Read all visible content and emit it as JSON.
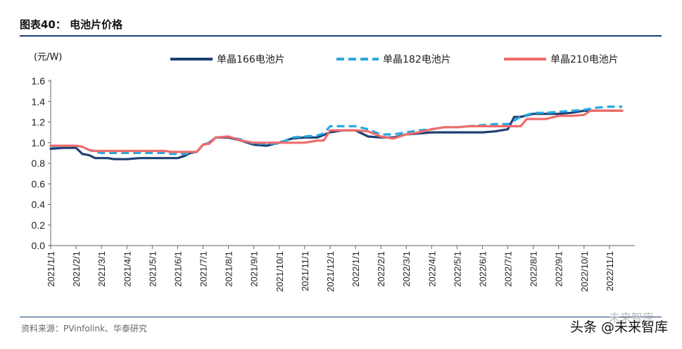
{
  "header": {
    "figure_title": "图表40： 电池片价格",
    "unit": "(元/W)"
  },
  "footer": {
    "source": "资料来源：PVinfolink、华泰研究",
    "watermark_faint": "未来智库",
    "watermark": "头条 @未来智库"
  },
  "chart_data": {
    "type": "line",
    "ylim": [
      0,
      1.6
    ],
    "yticks": [
      "0.0",
      "0.2",
      "0.4",
      "0.6",
      "0.8",
      "1.0",
      "1.2",
      "1.4",
      "1.6"
    ],
    "xlim": [
      0,
      23
    ],
    "xtick_labels": [
      "2021/1/1",
      "2021/2/1",
      "2021/3/1",
      "2021/4/1",
      "2021/5/1",
      "2021/6/1",
      "2021/7/1",
      "2021/8/1",
      "2021/9/1",
      "2021/10/1",
      "2021/11/1",
      "2021/12/1",
      "2022/1/1",
      "2022/2/1",
      "2022/3/1",
      "2022/4/1",
      "2022/5/1",
      "2022/6/1",
      "2022/7/1",
      "2022/8/1",
      "2022/9/1",
      "2022/10/1",
      "2022/11/1"
    ],
    "legend_position": "top",
    "series": [
      {
        "name": "单晶166电池片",
        "color": "#1c3f74",
        "dash": "solid",
        "x": [
          0,
          0.5,
          1.0,
          1.25,
          1.5,
          1.75,
          2.0,
          2.25,
          2.5,
          3.0,
          3.5,
          4.0,
          4.5,
          4.75,
          5.0,
          5.25,
          5.5,
          5.75,
          6.0,
          6.25,
          6.5,
          7.0,
          7.5,
          8.0,
          8.5,
          9.0,
          9.5,
          10.0,
          10.5,
          11.0,
          11.5,
          12.0,
          12.5,
          13.0,
          13.5,
          14.0,
          14.5,
          15.0,
          15.5,
          16.0,
          16.5,
          17.0,
          17.5,
          17.75,
          18.0,
          18.25,
          18.5,
          19.0,
          19.5,
          20.0,
          20.5,
          21.0,
          21.5,
          22.0,
          22.5
        ],
        "y": [
          0.94,
          0.95,
          0.95,
          0.89,
          0.88,
          0.85,
          0.85,
          0.85,
          0.84,
          0.84,
          0.85,
          0.85,
          0.85,
          0.85,
          0.85,
          0.87,
          0.9,
          0.91,
          0.98,
          1.0,
          1.05,
          1.05,
          1.02,
          0.98,
          0.97,
          1.0,
          1.04,
          1.05,
          1.05,
          1.1,
          1.12,
          1.12,
          1.06,
          1.05,
          1.05,
          1.08,
          1.09,
          1.1,
          1.1,
          1.1,
          1.1,
          1.1,
          1.11,
          1.12,
          1.13,
          1.25,
          1.25,
          1.28,
          1.28,
          1.28,
          1.29,
          1.31,
          1.31,
          1.31,
          1.31
        ]
      },
      {
        "name": "单晶182电池片",
        "color": "#29a9e0",
        "dash": "dashed",
        "x": [
          0,
          0.5,
          1.0,
          1.25,
          1.5,
          1.75,
          2.0,
          2.5,
          3.0,
          3.5,
          4.0,
          4.5,
          4.75,
          5.0,
          5.25,
          5.5,
          5.75,
          6.0,
          6.25,
          6.5,
          7.0,
          7.5,
          8.0,
          8.5,
          9.0,
          9.5,
          10.0,
          10.5,
          10.75,
          11.0,
          11.5,
          12.0,
          12.5,
          13.0,
          13.5,
          14.0,
          14.5,
          15.0,
          15.5,
          16.0,
          16.5,
          17.0,
          17.5,
          18.0,
          18.5,
          19.0,
          19.5,
          20.0,
          20.5,
          21.0,
          21.5,
          22.0,
          22.5
        ],
        "y": [
          0.96,
          0.97,
          0.97,
          0.96,
          0.93,
          0.91,
          0.9,
          0.9,
          0.9,
          0.9,
          0.9,
          0.9,
          0.89,
          0.89,
          0.89,
          0.9,
          0.91,
          0.98,
          1.0,
          1.05,
          1.06,
          1.03,
          0.99,
          0.99,
          0.99,
          1.05,
          1.06,
          1.07,
          1.09,
          1.16,
          1.16,
          1.16,
          1.13,
          1.08,
          1.08,
          1.1,
          1.12,
          1.13,
          1.15,
          1.15,
          1.16,
          1.17,
          1.18,
          1.18,
          1.25,
          1.29,
          1.29,
          1.3,
          1.31,
          1.32,
          1.34,
          1.35,
          1.35
        ]
      },
      {
        "name": "单晶210电池片",
        "color": "#ef6b6b",
        "dash": "solid",
        "x": [
          0,
          0.5,
          1.0,
          1.25,
          1.5,
          1.75,
          2.0,
          2.5,
          3.0,
          3.5,
          4.0,
          4.5,
          4.75,
          5.0,
          5.25,
          5.5,
          5.75,
          6.0,
          6.25,
          6.5,
          7.0,
          7.5,
          8.0,
          8.5,
          9.0,
          9.5,
          10.0,
          10.5,
          10.75,
          11.0,
          11.5,
          12.0,
          12.5,
          13.0,
          13.5,
          14.0,
          14.5,
          15.0,
          15.5,
          16.0,
          16.5,
          17.0,
          17.5,
          18.0,
          18.25,
          18.5,
          18.75,
          19.0,
          19.5,
          20.0,
          20.5,
          21.0,
          21.25,
          21.5,
          22.0,
          22.5
        ],
        "y": [
          0.97,
          0.97,
          0.97,
          0.96,
          0.93,
          0.92,
          0.92,
          0.92,
          0.92,
          0.92,
          0.92,
          0.92,
          0.91,
          0.91,
          0.91,
          0.91,
          0.91,
          0.98,
          0.99,
          1.05,
          1.06,
          1.02,
          1.0,
          1.0,
          1.0,
          1.0,
          1.0,
          1.02,
          1.02,
          1.12,
          1.12,
          1.12,
          1.11,
          1.06,
          1.04,
          1.08,
          1.1,
          1.13,
          1.15,
          1.15,
          1.16,
          1.16,
          1.16,
          1.16,
          1.16,
          1.16,
          1.23,
          1.23,
          1.23,
          1.26,
          1.26,
          1.27,
          1.31,
          1.31,
          1.31,
          1.31
        ]
      }
    ]
  }
}
